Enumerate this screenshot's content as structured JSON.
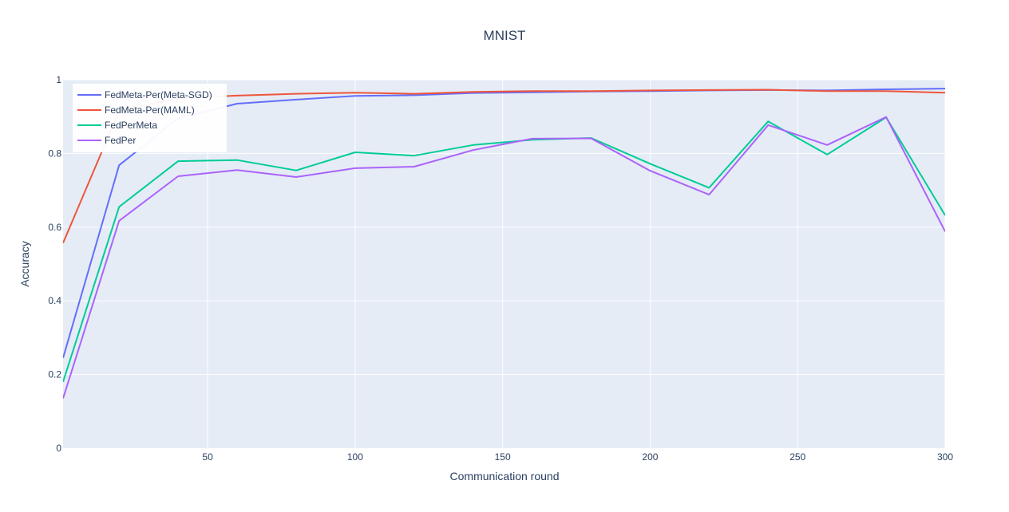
{
  "chart_data": {
    "type": "line",
    "title": "MNIST",
    "xlabel": "Communication round",
    "ylabel": "Accuracy",
    "xlim": [
      1,
      300
    ],
    "ylim": [
      0,
      1
    ],
    "xticks": [
      50,
      100,
      150,
      200,
      250,
      300
    ],
    "yticks": [
      0,
      0.2,
      0.4,
      0.6,
      0.8,
      1
    ],
    "ytick_labels": [
      "0",
      "0.2",
      "0.4",
      "0.6",
      "0.8",
      "1"
    ],
    "grid": true,
    "legend_position": "top-left",
    "plot_bgcolor": "#e5ecf6",
    "series": [
      {
        "name": "FedMeta-Per(Meta-SGD)",
        "color": "#636efa",
        "x": [
          1,
          20,
          40,
          60,
          80,
          100,
          120,
          140,
          160,
          180,
          200,
          220,
          240,
          260,
          280,
          300
        ],
        "y": [
          0.245,
          0.768,
          0.895,
          0.935,
          0.946,
          0.956,
          0.958,
          0.964,
          0.966,
          0.968,
          0.969,
          0.971,
          0.972,
          0.971,
          0.974,
          0.976
        ]
      },
      {
        "name": "FedMeta-Per(MAML)",
        "color": "#ef553b",
        "x": [
          1,
          20,
          40,
          60,
          80,
          100,
          120,
          140,
          160,
          180,
          200,
          220,
          240,
          260,
          280,
          300
        ],
        "y": [
          0.557,
          0.915,
          0.95,
          0.957,
          0.962,
          0.965,
          0.962,
          0.967,
          0.969,
          0.969,
          0.971,
          0.972,
          0.973,
          0.969,
          0.969,
          0.965
        ]
      },
      {
        "name": "FedPerMeta",
        "color": "#00cc96",
        "x": [
          1,
          20,
          40,
          60,
          80,
          100,
          120,
          140,
          160,
          180,
          200,
          220,
          240,
          260,
          280,
          300
        ],
        "y": [
          0.18,
          0.655,
          0.779,
          0.782,
          0.754,
          0.803,
          0.794,
          0.823,
          0.837,
          0.842,
          0.772,
          0.707,
          0.887,
          0.797,
          0.898,
          0.632
        ]
      },
      {
        "name": "FedPer",
        "color": "#ab63fa",
        "x": [
          1,
          20,
          40,
          60,
          80,
          100,
          120,
          140,
          160,
          180,
          200,
          220,
          240,
          260,
          280,
          300
        ],
        "y": [
          0.135,
          0.617,
          0.738,
          0.755,
          0.736,
          0.76,
          0.764,
          0.809,
          0.84,
          0.841,
          0.753,
          0.688,
          0.877,
          0.823,
          0.899,
          0.588
        ]
      }
    ]
  }
}
